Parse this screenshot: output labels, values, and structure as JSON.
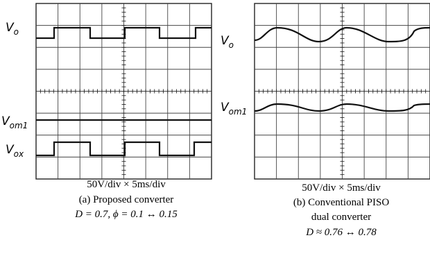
{
  "panels": [
    {
      "labels": [
        {
          "main": "V",
          "sub": "o"
        },
        {
          "main": "V",
          "sub": "om1"
        },
        {
          "main": "V",
          "sub": "ox"
        }
      ],
      "caption": [
        "50V/div × 5ms/div",
        "(a) Proposed converter",
        "D = 0.7, ϕ = 0.1 ↔ 0.15"
      ]
    },
    {
      "labels": [
        {
          "main": "V",
          "sub": "o"
        },
        {
          "main": "V",
          "sub": "om1"
        }
      ],
      "caption": [
        "50V/div × 5ms/div",
        "(b) Conventional PISO",
        "dual converter",
        "D ≈ 0.76 ↔ 0.78"
      ]
    }
  ]
}
